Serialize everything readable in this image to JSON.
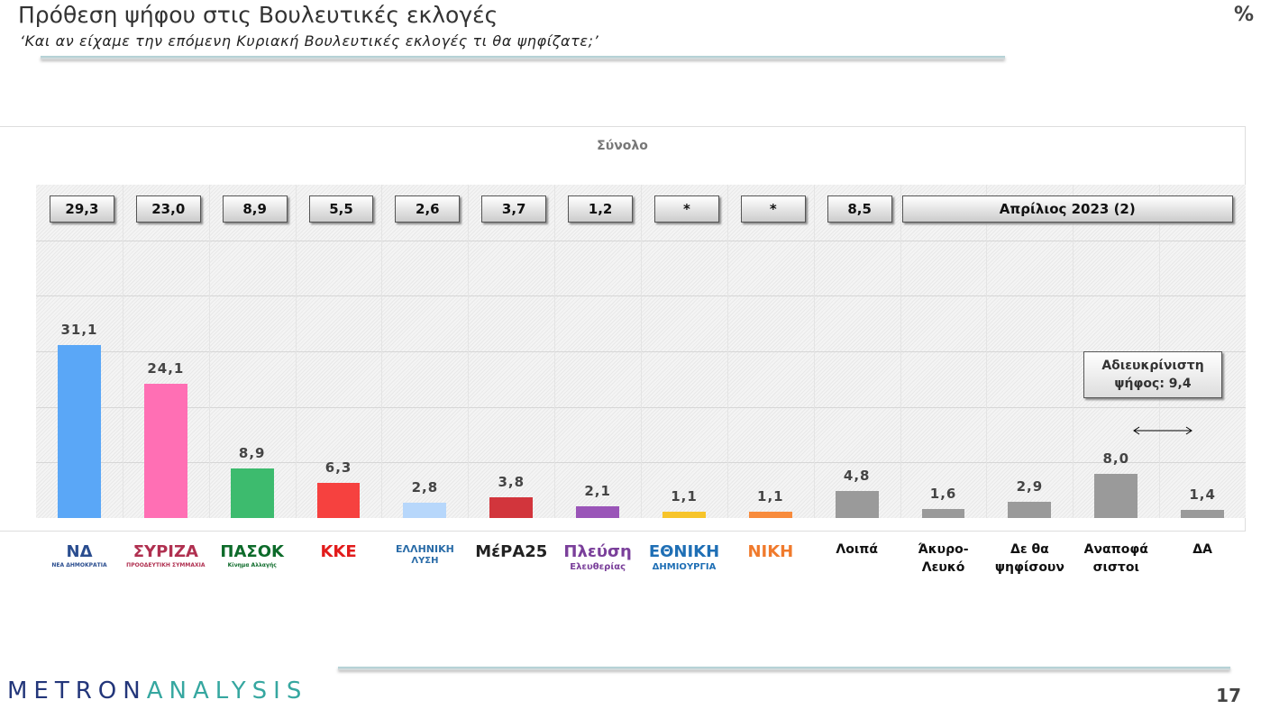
{
  "header": {
    "title": "Πρόθεση ψήφου στις Βουλευτικές εκλογές",
    "subtitle": "‘Και αν είχαμε την επόμενη Κυριακή Βουλευτικές εκλογές τι θα ψηφίζατε;’",
    "unit": "%"
  },
  "footer": {
    "brand_a": "METRON",
    "brand_b": "ANALYSIS",
    "page": "17"
  },
  "chart_data": {
    "type": "bar",
    "title": "Σύνολο",
    "ylim": [
      0,
      60
    ],
    "grid": true,
    "categories": [
      "ΝΔ",
      "ΣΥΡΙΖΑ",
      "ΠΑΣΟΚ",
      "ΚΚΕ",
      "Ελληνική Λύση",
      "ΜέΡΑ25",
      "Πλεύση Ελευθερίας",
      "Εθνική Δημιουργία",
      "ΝΙΚΗ",
      "Λοιπά",
      "Άκυρο-Λευκό",
      "Δε θα ψηφίσουν",
      "Αναποφάσιστοι",
      "ΔΑ"
    ],
    "values": [
      31.1,
      24.1,
      8.9,
      6.3,
      2.8,
      3.8,
      2.1,
      1.1,
      1.1,
      4.8,
      1.6,
      2.9,
      8.0,
      1.4
    ],
    "value_labels": [
      "31,1",
      "24,1",
      "8,9",
      "6,3",
      "2,8",
      "3,8",
      "2,1",
      "1,1",
      "1,1",
      "4,8",
      "1,6",
      "2,9",
      "8,0",
      "1,4"
    ],
    "colors": [
      "#5aa7f7",
      "#ff6fb4",
      "#3dbb6e",
      "#f6413f",
      "#b7d7fb",
      "#d2353c",
      "#9a55b8",
      "#f7c42a",
      "#f88b3c",
      "#9a9a9a",
      "#9a9a9a",
      "#9a9a9a",
      "#9a9a9a",
      "#9a9a9a"
    ],
    "comparison_title": "Απρίλιος 2023 (2)",
    "comparison_labels": [
      "29,3",
      "23,0",
      "8,9",
      "5,5",
      "2,6",
      "3,7",
      "1,2",
      "*",
      "*",
      "8,5"
    ],
    "text_categories": [
      "Λοιπά",
      "Άκυρο-\nΛευκό",
      "Δε θα\nψηφίσουν",
      "Αναποφά\nσιστοι",
      "ΔΑ"
    ],
    "annotation": "Αδιευκρίνιστη ψήφος: 9,4",
    "logos": [
      {
        "text": "ΝΔ",
        "sub": "ΝΕΑ ΔΗΜΟΚΡΑΤΙΑ",
        "color": "#2a4d8f"
      },
      {
        "text": "ΣΥΡΙΖΑ",
        "sub": "ΠΡΟΟΔΕΥΤΙΚΗ ΣΥΜΜΑΧΙΑ",
        "color": "#b03050"
      },
      {
        "text": "ΠΑΣΟΚ",
        "sub": "Κίνημα Αλλαγής",
        "color": "#0d6b2a"
      },
      {
        "text": "ΚΚΕ",
        "sub": "",
        "color": "#e21b1b"
      },
      {
        "text": "ΕΛΛΗΝΙΚΗ",
        "sub": "ΛΥΣΗ",
        "color": "#2a6ca8"
      },
      {
        "text": "ΜέΡΑ25",
        "sub": "",
        "color": "#222"
      },
      {
        "text": "Πλεύση",
        "sub": "Ελευθερίας",
        "color": "#7a3f9a"
      },
      {
        "text": "ΕΘΝΙΚΗ",
        "sub": "ΔΗΜΙΟΥΡΓΙΑ",
        "color": "#1f6fb5"
      },
      {
        "text": "ΝΙΚΗ",
        "sub": "",
        "color": "#f07a2c"
      }
    ]
  }
}
